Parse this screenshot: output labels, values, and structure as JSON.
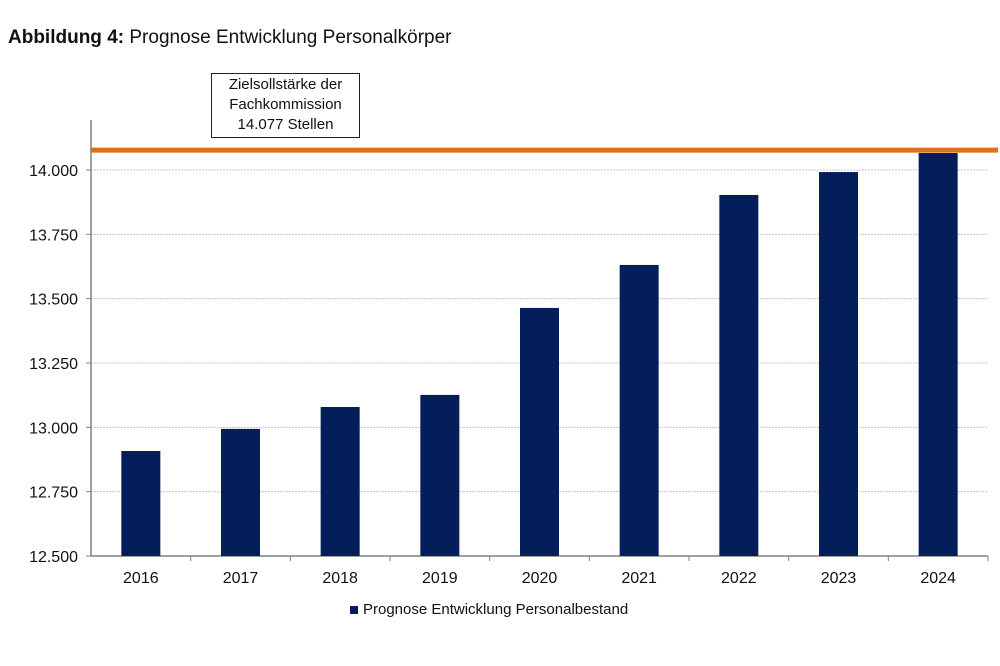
{
  "figure": {
    "label": "Abbildung 4:",
    "title": "Prognose Entwicklung Personalkörper"
  },
  "annotation": {
    "lines": [
      "Zielsollstärke der",
      "Fachkommission",
      "14.077 Stellen"
    ]
  },
  "legend": {
    "label": "Prognose Entwicklung Personalbestand"
  },
  "colors": {
    "bar": "#041e5c",
    "target_line": "#e07014",
    "grid": "#c8c8c8",
    "axis": "#808080"
  },
  "chart_data": {
    "type": "bar",
    "title": "Prognose Entwicklung Personalkörper",
    "xlabel": "",
    "ylabel": "",
    "categories": [
      "2016",
      "2017",
      "2018",
      "2019",
      "2020",
      "2021",
      "2022",
      "2023",
      "2024"
    ],
    "series": [
      {
        "name": "Prognose Entwicklung Personalbestand",
        "values": [
          12908,
          12994,
          13079,
          13126,
          13464,
          13631,
          13903,
          13992,
          14066
        ]
      }
    ],
    "reference_line": {
      "value": 14077,
      "label": "Zielsollstärke der Fachkommission 14.077 Stellen"
    },
    "ylim": [
      12500,
      14150
    ],
    "yticks": [
      12500,
      12750,
      13000,
      13250,
      13500,
      13750,
      14000
    ],
    "ytick_labels": [
      "12.500",
      "12.750",
      "13.000",
      "13.250",
      "13.500",
      "13.750",
      "14.000"
    ],
    "grid": true,
    "legend_position": "bottom"
  }
}
